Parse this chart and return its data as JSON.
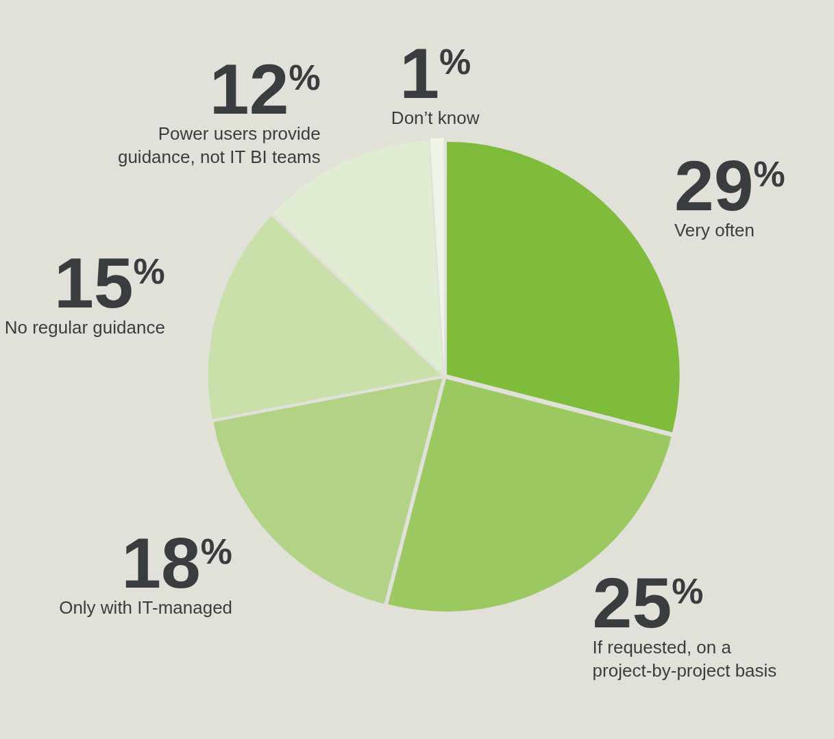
{
  "chart_data": {
    "type": "pie",
    "categories": [
      "Very often",
      "If requested, on a project-by-project basis",
      "Only with IT-managed",
      "No regular guidance",
      "Power users provide guidance, not IT BI teams",
      "Don’t know"
    ],
    "values": [
      29,
      25,
      18,
      15,
      12,
      1
    ],
    "value_labels": [
      "29%",
      "25%",
      "18%",
      "15%",
      "12%",
      "1%"
    ],
    "colors": [
      "#80bc3c",
      "#9bc860",
      "#b2d386",
      "#c9e0ab",
      "#e0edd2",
      "#eef4e6"
    ],
    "legend": false
  }
}
